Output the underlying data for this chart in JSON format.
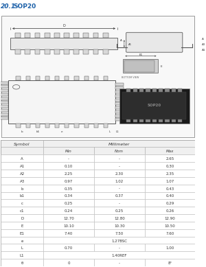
{
  "title_num": "20.1",
  "title_text": "  SOP20",
  "title_color": "#1a5fa8",
  "table_header": "Millimeter",
  "col_headers": [
    "Symbol",
    "Min",
    "Nom",
    "Max"
  ],
  "rows": [
    [
      "A",
      "-",
      "-",
      "2.65"
    ],
    [
      "A1",
      "0.10",
      "-",
      "0.30"
    ],
    [
      "A2",
      "2.25",
      "2.30",
      "2.35"
    ],
    [
      "A3",
      "0.97",
      "1.02",
      "1.07"
    ],
    [
      "b",
      "0.35",
      "-",
      "0.43"
    ],
    [
      "b1",
      "0.34",
      "0.37",
      "0.40"
    ],
    [
      "c",
      "0.25",
      "-",
      "0.29"
    ],
    [
      "c1",
      "0.24",
      "0.25",
      "0.26"
    ],
    [
      "D",
      "12.70",
      "12.80",
      "12.90"
    ],
    [
      "E",
      "10.10",
      "10.30",
      "10.50"
    ],
    [
      "E1",
      "7.40",
      "7.50",
      "7.60"
    ],
    [
      "e",
      "1.27BSC",
      "SPAN",
      "SPAN"
    ],
    [
      "L",
      "0.70",
      "-",
      "1.00"
    ],
    [
      "L1",
      "1.40REF",
      "SPAN",
      "SPAN"
    ],
    [
      "θ",
      "0",
      "-",
      "8°"
    ]
  ],
  "bg_color": "#ffffff",
  "diagram_bg": "#f0f0f0",
  "line_color": "#555555",
  "dim_color": "#333333",
  "photo_dark": "#1a1a1a",
  "photo_mid": "#3a3a3a"
}
